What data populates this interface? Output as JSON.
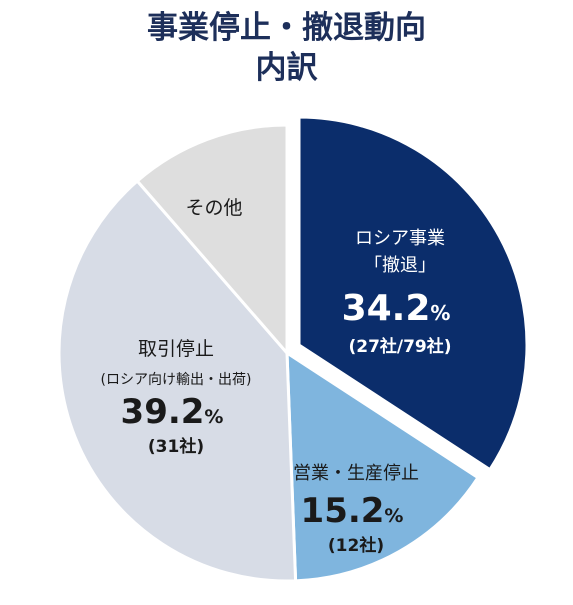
{
  "title_line1": "事業停止・撤退動向",
  "title_line2": "内訳",
  "chart_data": {
    "type": "pie",
    "categories": [
      "ロシア事業「撤退」",
      "営業・生産停止",
      "取引停止(ロシア向け輸出・出荷)",
      "その他"
    ],
    "values": [
      34.2,
      15.2,
      39.2,
      11.4
    ],
    "counts_text": [
      "(27社/79社)",
      "(12社)",
      "(31社)",
      ""
    ],
    "colors": [
      "#0b2d6b",
      "#7fb5de",
      "#d7dce6",
      "#dedede"
    ],
    "exploded": "ロシア事業「撤退」",
    "legend": "none",
    "slices": [
      {
        "name_line1": "ロシア事業",
        "name_line2": "「撤退」",
        "pct_num": "34.2",
        "pct_unit": "%",
        "count": "(27社/79社)"
      },
      {
        "name_line1": "営業・生産停止",
        "pct_num": "15.2",
        "pct_unit": "%",
        "count": "(12社)"
      },
      {
        "name_line1": "取引停止",
        "name_line2": "(ロシア向け輸出・出荷)",
        "pct_num": "39.2",
        "pct_unit": "%",
        "count": "(31社)"
      },
      {
        "name_line1": "その他"
      }
    ]
  }
}
